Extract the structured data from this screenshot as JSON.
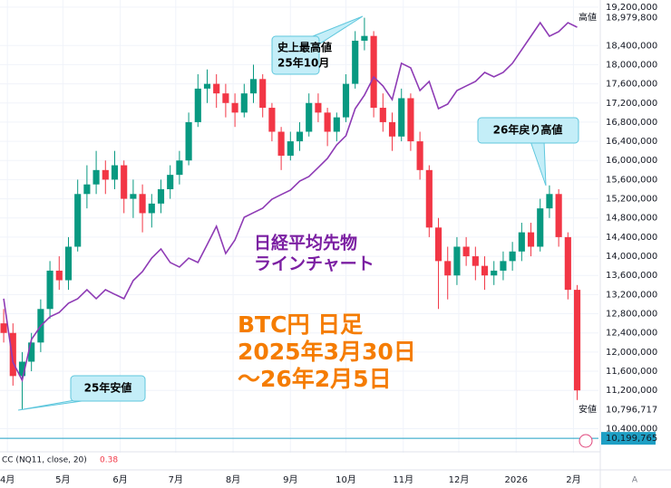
{
  "chart_data": {
    "type": "candlestick",
    "x": [
      0,
      5,
      10,
      15,
      20,
      25,
      30,
      35,
      40,
      45,
      50,
      55,
      60,
      65,
      70,
      75,
      80,
      85,
      90,
      95,
      100,
      105,
      110,
      115,
      120,
      125,
      130,
      135,
      140,
      145,
      150,
      155,
      160,
      165,
      170,
      175,
      180,
      185,
      190,
      195,
      200,
      205,
      210,
      215,
      220,
      225,
      230,
      235,
      240,
      245,
      250,
      255,
      260,
      265,
      270,
      275,
      280,
      285,
      290,
      295,
      300,
      305,
      310
    ],
    "open": [
      12600000,
      12400000,
      11500000,
      11800000,
      12200000,
      12900000,
      13700000,
      13500000,
      14200000,
      15300000,
      15500000,
      15800000,
      15600000,
      15900000,
      15200000,
      15300000,
      14900000,
      15100000,
      15400000,
      15700000,
      16000000,
      16800000,
      17500000,
      17600000,
      17400000,
      17200000,
      17000000,
      17400000,
      17700000,
      17100000,
      16600000,
      16100000,
      16400000,
      16600000,
      17200000,
      17000000,
      16600000,
      16900000,
      17600000,
      18500000,
      18600000,
      17100000,
      16800000,
      16500000,
      17300000,
      16400000,
      15800000,
      14600000,
      13900000,
      13600000,
      14200000,
      14000000,
      13800000,
      13600000,
      13700000,
      13900000,
      14100000,
      14500000,
      14200000,
      15000000,
      15300000,
      14400000,
      13300000
    ],
    "high": [
      12900000,
      12600000,
      12000000,
      12400000,
      13100000,
      13900000,
      14000000,
      14400000,
      15600000,
      15900000,
      16200000,
      16000000,
      16200000,
      16000000,
      15600000,
      15500000,
      15300000,
      15600000,
      15900000,
      16200000,
      17000000,
      17800000,
      17900000,
      17800000,
      17600000,
      17400000,
      17600000,
      18000000,
      17800000,
      17200000,
      16700000,
      16600000,
      16800000,
      17400000,
      17400000,
      17100000,
      17000000,
      17800000,
      18700000,
      18979800,
      18700000,
      17400000,
      17000000,
      17500000,
      17400000,
      16600000,
      15900000,
      14800000,
      14200000,
      14400000,
      14400000,
      14200000,
      14000000,
      13900000,
      14100000,
      14300000,
      14700000,
      14700000,
      15200000,
      15480000,
      15400000,
      14500000,
      13400000
    ],
    "low": [
      12200000,
      11300000,
      10796717,
      11600000,
      12000000,
      12700000,
      13300000,
      13300000,
      14100000,
      15000000,
      15300000,
      15300000,
      15400000,
      14900000,
      14800000,
      14500000,
      14600000,
      14900000,
      15200000,
      15500000,
      15900000,
      16700000,
      17200000,
      17100000,
      16900000,
      16700000,
      16900000,
      17200000,
      16900000,
      16400000,
      15800000,
      16000000,
      16200000,
      16500000,
      16800000,
      16300000,
      16400000,
      16800000,
      17500000,
      18300000,
      16900000,
      16600000,
      16200000,
      16400000,
      16200000,
      15600000,
      14400000,
      12900000,
      13100000,
      13400000,
      13800000,
      13500000,
      13300000,
      13400000,
      13500000,
      13700000,
      13900000,
      14000000,
      14100000,
      14800000,
      14200000,
      13100000,
      11000000
    ],
    "close": [
      12400000,
      11500000,
      11800000,
      12200000,
      12900000,
      13700000,
      13500000,
      14200000,
      15300000,
      15500000,
      15800000,
      15600000,
      15900000,
      15200000,
      15300000,
      14900000,
      15100000,
      15400000,
      15700000,
      16000000,
      16800000,
      17500000,
      17600000,
      17400000,
      17200000,
      17000000,
      17400000,
      17700000,
      17100000,
      16600000,
      16100000,
      16400000,
      16600000,
      17200000,
      17000000,
      16600000,
      16900000,
      17600000,
      18500000,
      18600000,
      17100000,
      16800000,
      16500000,
      17300000,
      16400000,
      15800000,
      14600000,
      13900000,
      13600000,
      14200000,
      14000000,
      13800000,
      13600000,
      13700000,
      13900000,
      14100000,
      14500000,
      14200000,
      15000000,
      15300000,
      14400000,
      13300000,
      11200000
    ],
    "up_color": "#089981",
    "down_color": "#f23645",
    "overlay": {
      "type": "line",
      "color": "#8e3bb5",
      "axis": "y2",
      "values": [
        37400,
        33650,
        32580,
        34990,
        35790,
        36330,
        36590,
        37130,
        37400,
        37930,
        37400,
        37930,
        37660,
        37400,
        38470,
        39000,
        39800,
        40340,
        39540,
        39270,
        39800,
        39540,
        40600,
        41680,
        40070,
        40870,
        42210,
        42480,
        42750,
        43280,
        43550,
        43820,
        44350,
        44620,
        45150,
        45690,
        46490,
        47030,
        48630,
        49430,
        50500,
        49970,
        49170,
        51310,
        51040,
        49700,
        50240,
        48630,
        48900,
        49700,
        49970,
        50240,
        50770,
        50510,
        50770,
        51310,
        52110,
        52910,
        53710,
        52910,
        53180,
        53710,
        53440
      ]
    },
    "xlim": [
      -2,
      321.5
    ],
    "ylim": [
      9900000,
      19350000
    ],
    "y2lim": [
      28300,
      55050
    ],
    "grid": true,
    "xticks": [
      {
        "value": 2,
        "label": "4月"
      },
      {
        "value": 32,
        "label": "5月"
      },
      {
        "value": 63,
        "label": "6月"
      },
      {
        "value": 93,
        "label": "7月"
      },
      {
        "value": 124,
        "label": "8月"
      },
      {
        "value": 155,
        "label": "9月"
      },
      {
        "value": 185,
        "label": "10月"
      },
      {
        "value": 216,
        "label": "11月"
      },
      {
        "value": 246,
        "label": "12月"
      },
      {
        "value": 277,
        "label": "2026"
      },
      {
        "value": 308,
        "label": "2月"
      }
    ],
    "yticks": [
      {
        "value": 10400000,
        "label": "10,400,000"
      },
      {
        "value": 11200000,
        "label": "11,200,000"
      },
      {
        "value": 11600000,
        "label": "11,600,000"
      },
      {
        "value": 12000000,
        "label": "12,000,000"
      },
      {
        "value": 12400000,
        "label": "12,400,000"
      },
      {
        "value": 12800000,
        "label": "12,800,000"
      },
      {
        "value": 13200000,
        "label": "13,200,000"
      },
      {
        "value": 13600000,
        "label": "13,600,000"
      },
      {
        "value": 14000000,
        "label": "14,000,000"
      },
      {
        "value": 14400000,
        "label": "14,400,000"
      },
      {
        "value": 14800000,
        "label": "14,800,000"
      },
      {
        "value": 15200000,
        "label": "15,200,000"
      },
      {
        "value": 15600000,
        "label": "15,600,000"
      },
      {
        "value": 16000000,
        "label": "16,000,000"
      },
      {
        "value": 16400000,
        "label": "16,400,000"
      },
      {
        "value": 16800000,
        "label": "16,800,000"
      },
      {
        "value": 17200000,
        "label": "17,200,000"
      },
      {
        "value": 17600000,
        "label": "17,600,000"
      },
      {
        "value": 18000000,
        "label": "18,000,000"
      },
      {
        "value": 18400000,
        "label": "18,400,000"
      },
      {
        "value": 19200000,
        "label": "19,200,000"
      }
    ],
    "price_labels": [
      {
        "name": "高値",
        "value": 18979800,
        "label": "18,979,800",
        "color": "#ffffff"
      },
      {
        "name": "安値",
        "value": 10796717,
        "label": "10,796,717",
        "color": "#ffffff"
      },
      {
        "value": 10199765,
        "label": "10,199,765",
        "color": "#1e9fc4"
      }
    ],
    "annotations": {
      "ath": [
        "史上最高値",
        "25年10月"
      ],
      "rebound_high": "26年戻り高値",
      "low": "25年安値",
      "nikkei": [
        "日経平均先物",
        "ラインチャート"
      ],
      "caption": [
        "BTC円 日足",
        "2025年3月30日",
        "〜26年2月5日"
      ]
    },
    "indicator": {
      "label": "CC (NQ11, close, 20)",
      "value": 0.38
    }
  },
  "ui": {
    "auto_button": "A"
  }
}
